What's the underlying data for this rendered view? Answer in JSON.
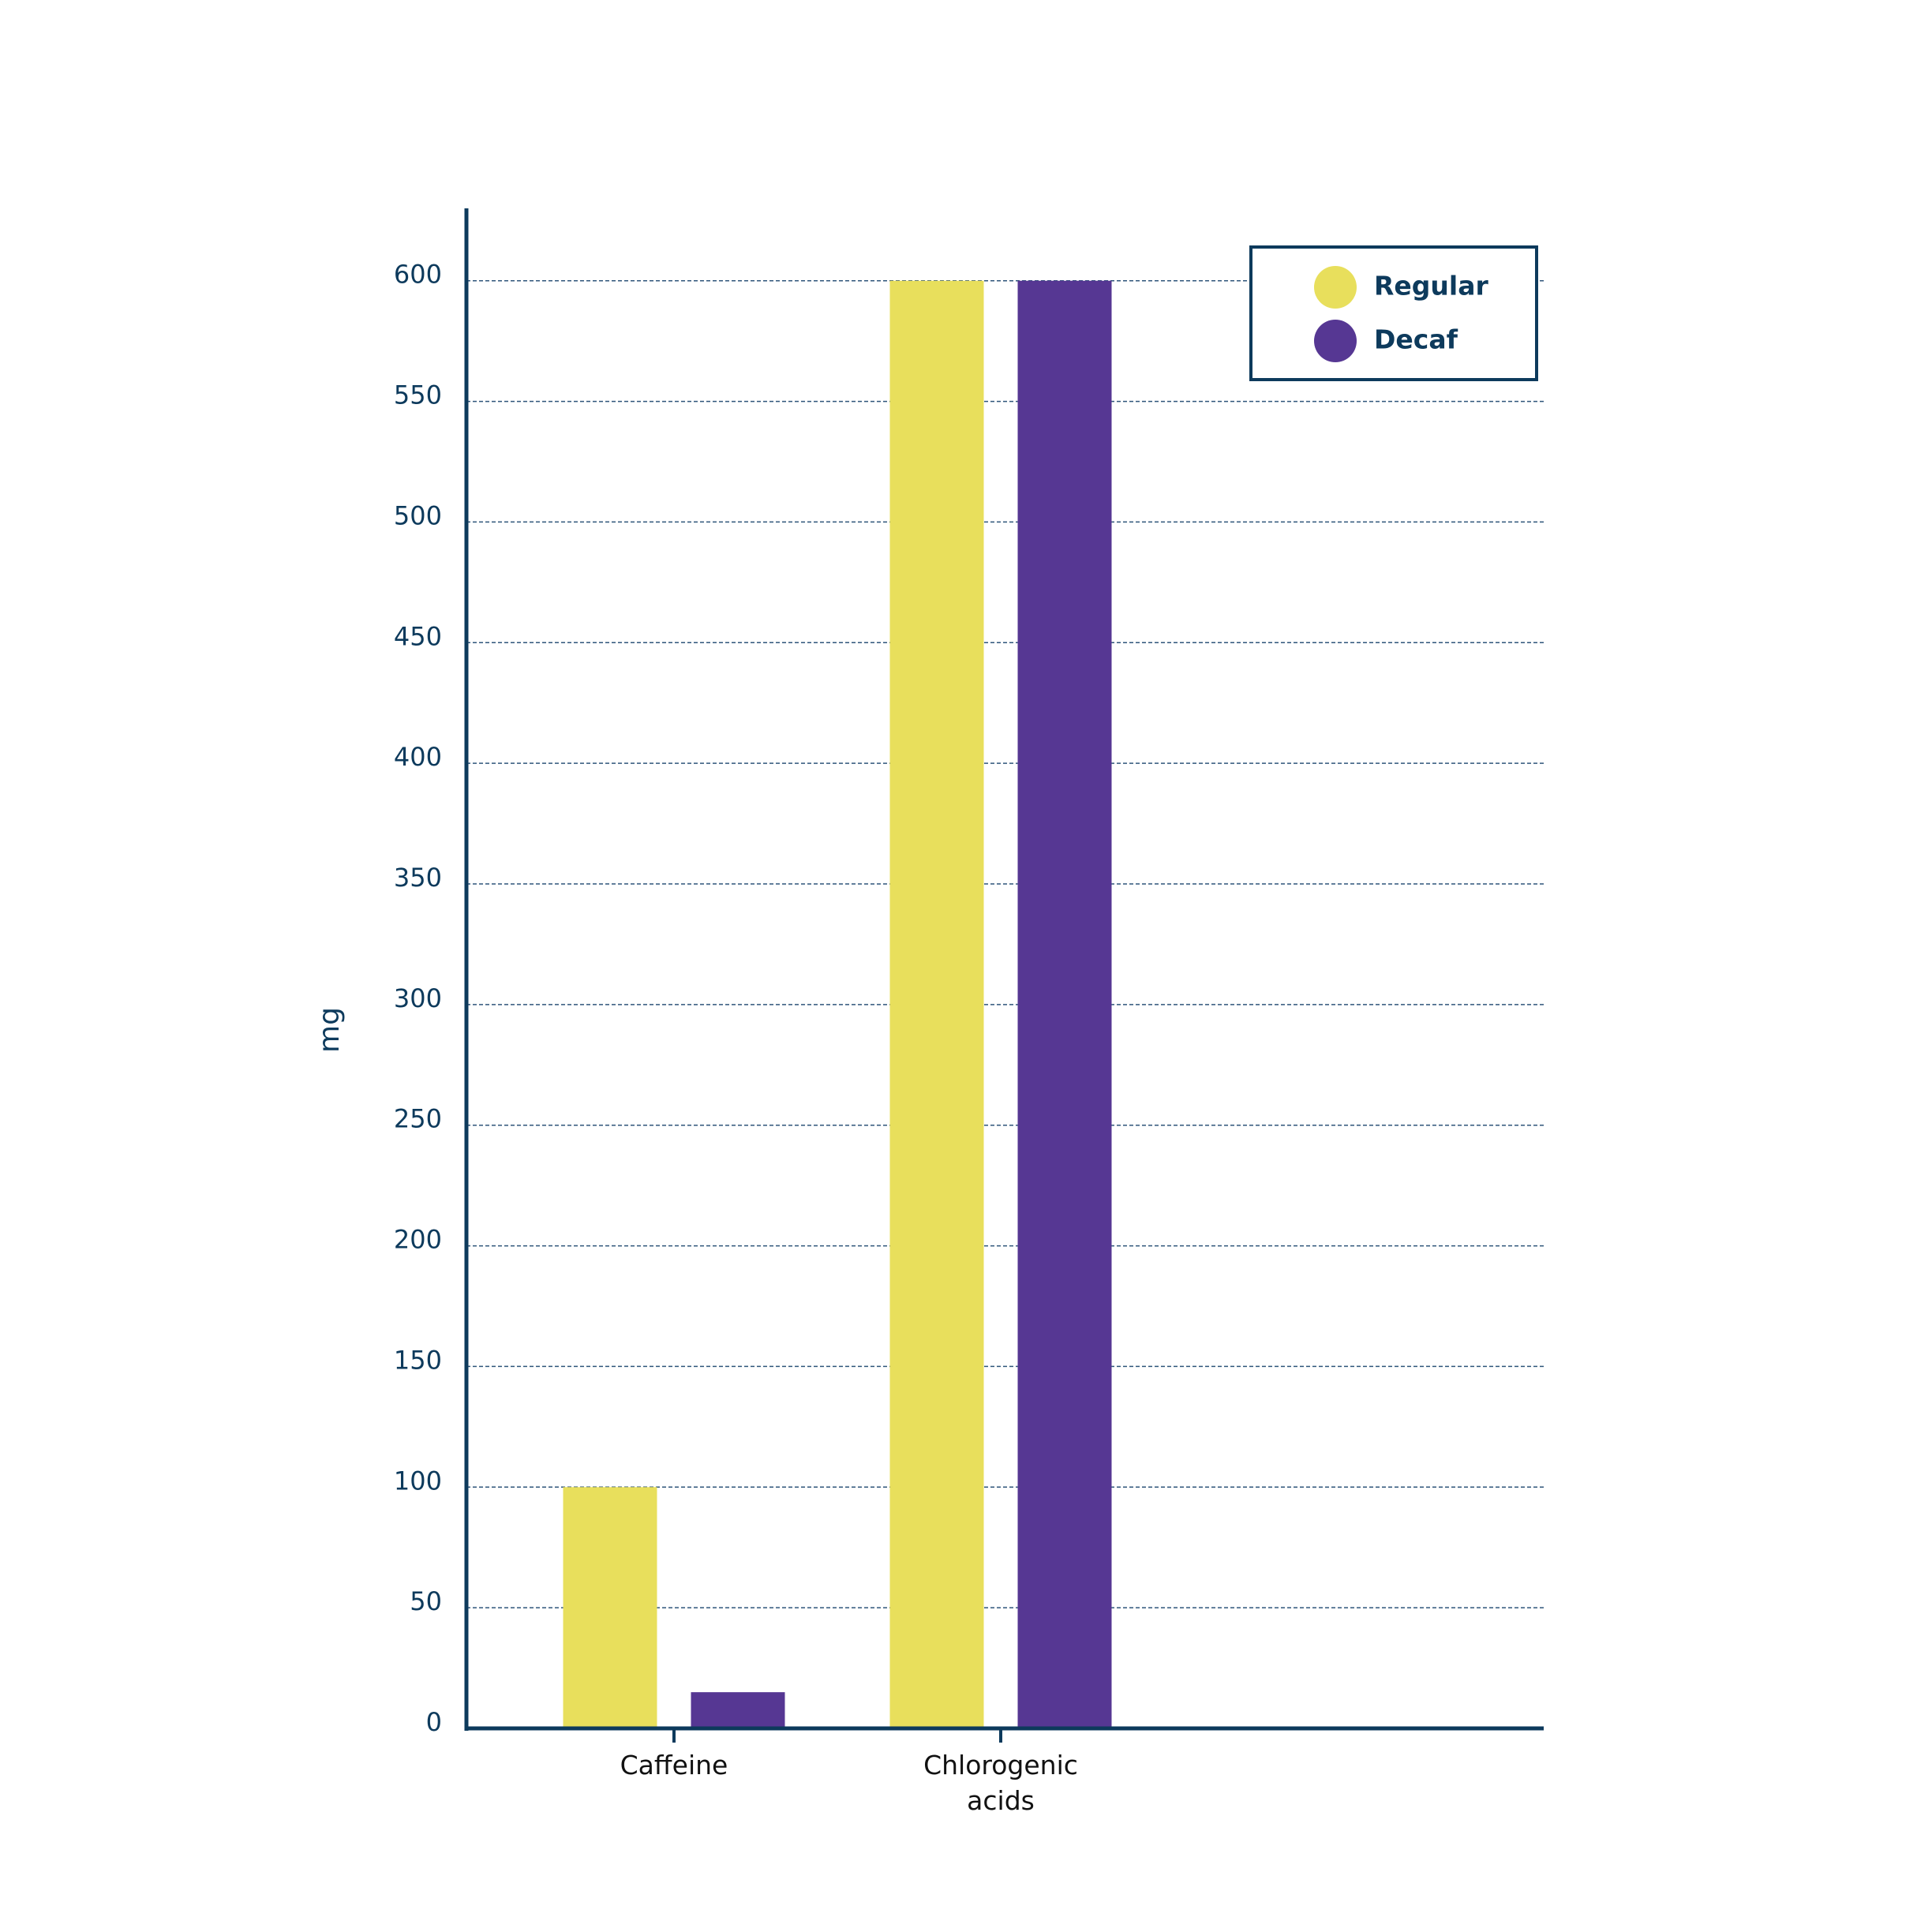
{
  "chart_data": {
    "type": "bar",
    "y_label": "mg",
    "categories": [
      "Caffeine",
      "Chlorogenic acids"
    ],
    "series": [
      {
        "name": "Regular",
        "color": "#e8df5c",
        "values": [
          100,
          600
        ]
      },
      {
        "name": "Decaf",
        "color": "#563793",
        "values": [
          15,
          600
        ]
      }
    ],
    "ylim": [
      0,
      630
    ],
    "yticks": [
      0,
      50,
      100,
      150,
      200,
      250,
      300,
      350,
      400,
      450,
      500,
      550,
      600
    ],
    "grid": true,
    "legend": "upper right"
  }
}
